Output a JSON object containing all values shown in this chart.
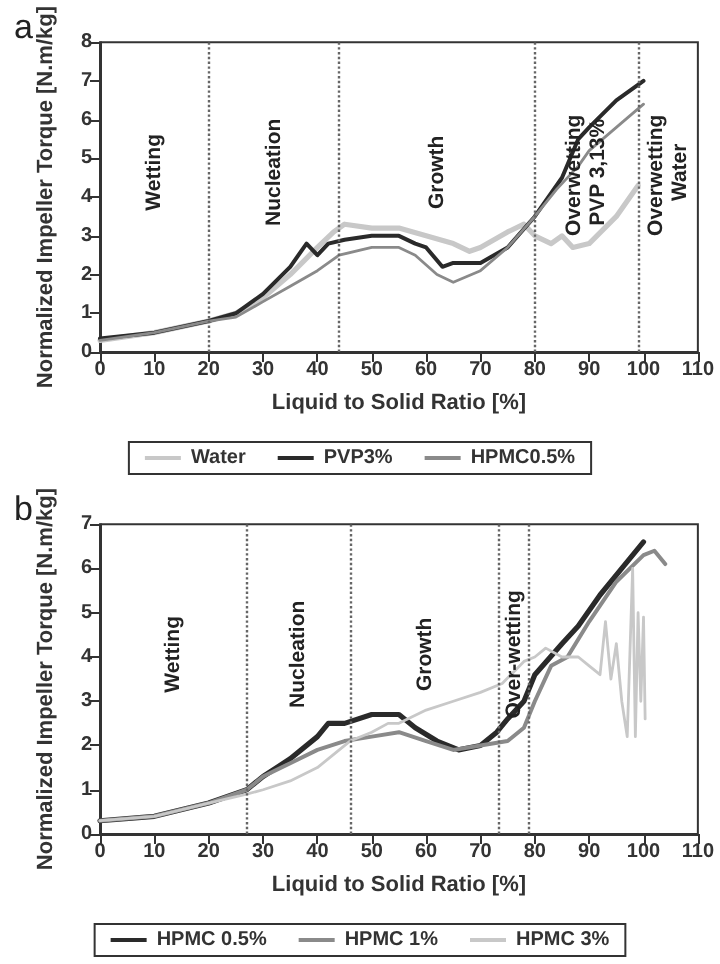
{
  "chart_data": [
    {
      "type": "line",
      "title": "a",
      "xlabel": "Liquid to Solid Ratio [%]",
      "ylabel": "Normalized Impeller Torque [N.m/kg]",
      "xlim": [
        0,
        110
      ],
      "xticks": [
        0,
        10,
        20,
        30,
        40,
        50,
        60,
        70,
        80,
        90,
        100,
        110
      ],
      "ylim": [
        0,
        8
      ],
      "yticks": [
        0,
        1,
        2,
        3,
        4,
        5,
        6,
        7,
        8
      ],
      "grid": false,
      "legend": "bottom",
      "marker": "none",
      "line_style": "solid",
      "annotations": [
        "Wetting",
        "Nucleation",
        "Growth",
        "Overwetting PVP 3,13%",
        "Overwetting Water"
      ],
      "ref_lines": [
        {
          "axis": "x",
          "value": 20,
          "line_style": "dotted"
        },
        {
          "axis": "x",
          "value": 44,
          "line_style": "dotted"
        },
        {
          "axis": "x",
          "value": 80,
          "line_style": "dotted"
        },
        {
          "axis": "x",
          "value": 99,
          "line_style": "dotted"
        }
      ],
      "series": [
        {
          "name": "Water",
          "color": "#c8c8c8",
          "x": [
            0,
            10,
            20,
            25,
            30,
            35,
            40,
            43,
            45,
            50,
            55,
            60,
            65,
            68,
            70,
            75,
            78,
            80,
            83,
            85,
            87,
            90,
            95,
            99
          ],
          "values": [
            0.3,
            0.5,
            0.8,
            1.0,
            1.4,
            2.0,
            2.7,
            3.1,
            3.3,
            3.2,
            3.2,
            3.0,
            2.8,
            2.6,
            2.7,
            3.1,
            3.3,
            3.0,
            2.8,
            3.0,
            2.7,
            2.8,
            3.5,
            4.3
          ]
        },
        {
          "name": "PVP3%",
          "color": "#2a2a2a",
          "x": [
            0,
            10,
            20,
            25,
            28,
            30,
            35,
            38,
            40,
            42,
            45,
            50,
            55,
            58,
            60,
            63,
            65,
            70,
            75,
            80,
            85,
            88,
            90,
            95,
            100
          ],
          "values": [
            0.35,
            0.5,
            0.8,
            1.0,
            1.3,
            1.5,
            2.2,
            2.8,
            2.5,
            2.8,
            2.9,
            3.0,
            3.0,
            2.8,
            2.7,
            2.2,
            2.3,
            2.3,
            2.7,
            3.5,
            4.5,
            5.5,
            5.8,
            6.5,
            7.0
          ]
        },
        {
          "name": "HPMC0.5%",
          "color": "#8a8a8a",
          "x": [
            0,
            10,
            20,
            25,
            30,
            35,
            40,
            44,
            50,
            55,
            58,
            62,
            65,
            70,
            75,
            80,
            84,
            88,
            90,
            95,
            100
          ],
          "values": [
            0.3,
            0.5,
            0.8,
            0.9,
            1.3,
            1.7,
            2.1,
            2.5,
            2.7,
            2.7,
            2.5,
            2.0,
            1.8,
            2.1,
            2.7,
            3.5,
            4.2,
            4.8,
            5.2,
            5.8,
            6.4
          ]
        }
      ]
    },
    {
      "type": "line",
      "title": "b",
      "xlabel": "Liquid to Solid Ratio [%]",
      "ylabel": "Normalized Impeller Torque [N.m/kg]",
      "xlim": [
        0,
        110
      ],
      "xticks": [
        0,
        10,
        20,
        30,
        40,
        50,
        60,
        70,
        80,
        90,
        100,
        110
      ],
      "ylim": [
        0,
        7
      ],
      "yticks": [
        0,
        1,
        2,
        3,
        4,
        5,
        6,
        7
      ],
      "grid": false,
      "legend": "bottom",
      "marker": "none",
      "line_style": "solid",
      "annotations": [
        "Wetting",
        "Nucleation",
        "Growth",
        "Over-wetting"
      ],
      "ref_lines": [
        {
          "axis": "x",
          "value": 27,
          "line_style": "dotted"
        },
        {
          "axis": "x",
          "value": 46,
          "line_style": "dotted"
        },
        {
          "axis": "x",
          "value": 73.5,
          "line_style": "dotted"
        },
        {
          "axis": "x",
          "value": 79,
          "line_style": "dotted"
        }
      ],
      "series": [
        {
          "name": "HPMC 0.5%",
          "color": "#2a2a2a",
          "x": [
            0,
            10,
            20,
            27,
            30,
            35,
            40,
            42,
            45,
            50,
            55,
            58,
            62,
            66,
            70,
            73,
            75,
            78,
            80,
            85,
            88,
            92,
            96,
            100
          ],
          "values": [
            0.3,
            0.4,
            0.7,
            1.0,
            1.3,
            1.7,
            2.2,
            2.5,
            2.5,
            2.7,
            2.7,
            2.4,
            2.1,
            1.9,
            2.0,
            2.3,
            2.6,
            3.0,
            3.6,
            4.3,
            4.7,
            5.4,
            6.0,
            6.6
          ]
        },
        {
          "name": "HPMC 1%",
          "color": "#8a8a8a",
          "x": [
            0,
            10,
            20,
            27,
            30,
            35,
            40,
            45,
            50,
            55,
            60,
            65,
            70,
            75,
            78,
            80,
            83,
            86,
            90,
            95,
            100,
            102,
            104
          ],
          "values": [
            0.3,
            0.4,
            0.7,
            1.0,
            1.3,
            1.6,
            1.9,
            2.1,
            2.2,
            2.3,
            2.1,
            1.9,
            2.0,
            2.1,
            2.4,
            3.0,
            3.8,
            4.0,
            4.8,
            5.7,
            6.3,
            6.4,
            6.1
          ]
        },
        {
          "name": "HPMC 3%",
          "color": "#c8c8c8",
          "x": [
            0,
            10,
            20,
            27,
            30,
            35,
            40,
            43,
            46,
            50,
            53,
            55,
            60,
            65,
            70,
            74,
            78,
            80,
            82,
            85,
            88,
            90,
            92,
            93,
            94,
            95,
            96,
            97,
            98,
            98.5,
            99,
            99.5,
            100,
            100.3
          ],
          "values": [
            0.3,
            0.4,
            0.7,
            0.9,
            1.0,
            1.2,
            1.5,
            1.8,
            2.1,
            2.3,
            2.5,
            2.5,
            2.8,
            3.0,
            3.2,
            3.4,
            3.9,
            4.0,
            4.2,
            4.0,
            4.0,
            3.8,
            3.6,
            4.8,
            3.5,
            4.3,
            3.0,
            2.2,
            6.0,
            2.2,
            5.0,
            3.0,
            4.9,
            2.6
          ]
        }
      ]
    }
  ]
}
